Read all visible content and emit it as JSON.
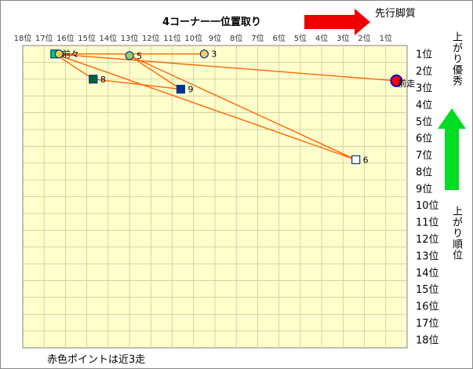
{
  "chart_data": {
    "type": "scatter",
    "title": "4コーナー一位置取り",
    "footnote": "赤色ポイントは近3走",
    "arrow_right_label": "先行脚質",
    "arrow_up_label": "上がり優秀",
    "y_side_label": "上がり順位",
    "x_ticks": [
      "18位",
      "17位",
      "16位",
      "15位",
      "14位",
      "13位",
      "12位",
      "11位",
      "10位",
      "9位",
      "8位",
      "7位",
      "6位",
      "5位",
      "4位",
      "3位",
      "2位",
      "1位"
    ],
    "y_ticks": [
      "1位",
      "2位",
      "3位",
      "4位",
      "5位",
      "6位",
      "7位",
      "8位",
      "9位",
      "10位",
      "11位",
      "12位",
      "13位",
      "14位",
      "15位",
      "16位",
      "17位",
      "18位"
    ],
    "x_range": [
      18,
      1
    ],
    "y_range": [
      1,
      18
    ],
    "grid": true,
    "points": [
      {
        "label": "前々",
        "x": 17,
        "y": 1,
        "marker": "circle",
        "fill": "#ff3333",
        "stroke": "#9999ff"
      },
      {
        "label": "",
        "x": 17,
        "y": 1,
        "marker": "square",
        "fill": "#00cc66",
        "stroke": "#003399"
      },
      {
        "label": "",
        "x": 16.8,
        "y": 1,
        "marker": "circle",
        "fill": "#ffcc33",
        "stroke": "#003399"
      },
      {
        "label": "5",
        "x": 13.5,
        "y": 1.1,
        "marker": "circle",
        "fill": "#99cc66",
        "stroke": "#003399"
      },
      {
        "label": "3",
        "x": 10,
        "y": 1,
        "marker": "circle",
        "fill": "#ffcc66",
        "stroke": "#003399"
      },
      {
        "label": "前走",
        "x": 1,
        "y": 2.6,
        "marker": "circle",
        "fill": "#ff0000",
        "stroke": "#0000cc"
      },
      {
        "label": "8",
        "x": 15.2,
        "y": 2.5,
        "marker": "square",
        "fill": "#006633",
        "stroke": "#003399"
      },
      {
        "label": "9",
        "x": 11.1,
        "y": 3.1,
        "marker": "square",
        "fill": "#003399",
        "stroke": "#003399"
      },
      {
        "label": "6",
        "x": 2.9,
        "y": 7.3,
        "marker": "square",
        "fill": "#ffffff",
        "stroke": "#003399"
      }
    ],
    "path": [
      [
        1,
        2.6
      ],
      [
        17,
        1
      ],
      [
        15.2,
        2.5
      ],
      [
        11.1,
        3.1
      ],
      [
        13.5,
        1.1
      ],
      [
        2.9,
        7.3
      ],
      [
        17,
        1
      ],
      [
        10,
        1
      ],
      [
        16.8,
        1
      ]
    ],
    "colors": {
      "plot_bg": "#ffffcc",
      "grid": "#c8c8a0",
      "line": "#ff6600",
      "arrow_red": "#ee0000",
      "arrow_green": "#00dd22"
    }
  }
}
